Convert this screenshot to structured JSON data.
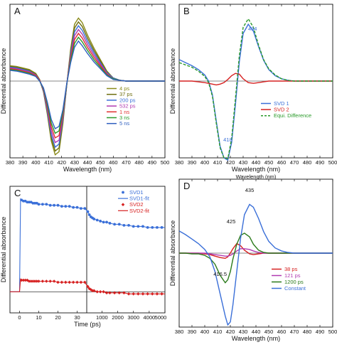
{
  "chart_data": [
    {
      "panel": "A",
      "type": "line",
      "xlabel": "Wavelength (nm)",
      "ylabel": "Differential absorbance",
      "xlim": [
        380,
        500
      ],
      "xticks": [
        380,
        390,
        400,
        410,
        420,
        430,
        440,
        450,
        460,
        470,
        480,
        490,
        500
      ],
      "ylim": [
        -1,
        1
      ],
      "x": [
        380,
        385,
        390,
        395,
        400,
        403,
        406,
        409,
        412,
        415,
        418,
        421,
        424,
        427,
        430,
        433,
        436,
        440,
        445,
        450,
        455,
        460,
        465,
        470,
        475,
        480,
        490,
        500
      ],
      "series": [
        {
          "name": "4 ps",
          "color": "#8a8a1a",
          "values": [
            0.2,
            0.19,
            0.17,
            0.15,
            0.1,
            0.02,
            -0.14,
            -0.44,
            -0.78,
            -0.96,
            -0.92,
            -0.55,
            -0.05,
            0.42,
            0.74,
            0.82,
            0.76,
            0.6,
            0.43,
            0.28,
            0.13,
            0.04,
            0.01,
            0.0,
            0.0,
            0.0,
            0.0,
            0.0
          ]
        },
        {
          "name": "37 ps",
          "color": "#6e6e0e",
          "values": [
            0.19,
            0.18,
            0.16,
            0.14,
            0.09,
            0.01,
            -0.14,
            -0.42,
            -0.74,
            -0.91,
            -0.87,
            -0.52,
            -0.05,
            0.39,
            0.69,
            0.77,
            0.71,
            0.56,
            0.4,
            0.26,
            0.12,
            0.04,
            0.01,
            0.0,
            0.0,
            0.0,
            0.0,
            0.0
          ]
        },
        {
          "name": "200 ps",
          "color": "#3a6fd8",
          "values": [
            0.18,
            0.17,
            0.15,
            0.13,
            0.08,
            0.01,
            -0.13,
            -0.4,
            -0.7,
            -0.86,
            -0.82,
            -0.49,
            -0.05,
            0.36,
            0.64,
            0.72,
            0.66,
            0.52,
            0.37,
            0.24,
            0.11,
            0.04,
            0.01,
            0.0,
            0.0,
            0.0,
            0.0,
            0.0
          ]
        },
        {
          "name": "532 ps",
          "color": "#b03ab0",
          "values": [
            0.17,
            0.16,
            0.14,
            0.12,
            0.08,
            0.01,
            -0.12,
            -0.37,
            -0.65,
            -0.8,
            -0.77,
            -0.46,
            -0.04,
            0.33,
            0.59,
            0.67,
            0.61,
            0.48,
            0.34,
            0.22,
            0.1,
            0.03,
            0.01,
            0.0,
            0.0,
            0.0,
            0.0,
            0.0
          ]
        },
        {
          "name": "1 ns",
          "color": "#e03030",
          "values": [
            0.16,
            0.15,
            0.13,
            0.11,
            0.07,
            0.01,
            -0.11,
            -0.34,
            -0.6,
            -0.74,
            -0.71,
            -0.43,
            -0.04,
            0.3,
            0.54,
            0.62,
            0.56,
            0.44,
            0.31,
            0.2,
            0.09,
            0.03,
            0.01,
            0.0,
            0.0,
            0.0,
            0.0,
            0.0
          ]
        },
        {
          "name": "3 ns",
          "color": "#2a9a2a",
          "values": [
            0.15,
            0.14,
            0.12,
            0.1,
            0.06,
            0.0,
            -0.1,
            -0.31,
            -0.55,
            -0.68,
            -0.65,
            -0.4,
            -0.04,
            0.27,
            0.49,
            0.57,
            0.51,
            0.4,
            0.28,
            0.18,
            0.08,
            0.03,
            0.01,
            0.0,
            0.0,
            0.0,
            0.0,
            0.0
          ]
        },
        {
          "name": "5 ns",
          "color": "#2f5fc0",
          "values": [
            0.14,
            0.13,
            0.11,
            0.09,
            0.06,
            0.0,
            -0.09,
            -0.28,
            -0.5,
            -0.62,
            -0.59,
            -0.37,
            -0.03,
            0.24,
            0.44,
            0.52,
            0.46,
            0.36,
            0.25,
            0.16,
            0.07,
            0.02,
            0.01,
            0.0,
            0.0,
            0.0,
            0.0,
            0.0
          ]
        }
      ]
    },
    {
      "panel": "B",
      "type": "line",
      "xlabel": "Wavelength (nm)",
      "ylabel": "Differential absorbance",
      "xlim": [
        380,
        500
      ],
      "xticks": [
        380,
        390,
        400,
        410,
        420,
        430,
        440,
        450,
        460,
        470,
        480,
        490,
        500
      ],
      "ylim": [
        -1,
        1
      ],
      "x": [
        380,
        385,
        390,
        395,
        400,
        403,
        406,
        409,
        412,
        415,
        418,
        421,
        424,
        427,
        430,
        434,
        438,
        442,
        446,
        450,
        455,
        460,
        465,
        470,
        480,
        490,
        500
      ],
      "series": [
        {
          "name": "SVD 1",
          "color": "#3a6fd8",
          "values": [
            0.28,
            0.24,
            0.2,
            0.15,
            0.08,
            0.0,
            -0.18,
            -0.52,
            -0.85,
            -1.0,
            -1.03,
            -0.8,
            -0.3,
            0.25,
            0.62,
            0.74,
            0.65,
            0.45,
            0.27,
            0.15,
            0.07,
            0.03,
            0.01,
            0.0,
            0.0,
            0.0,
            0.0
          ]
        },
        {
          "name": "SVD 2",
          "color": "#d62020",
          "values": [
            0.0,
            0.0,
            0.0,
            -0.01,
            -0.02,
            -0.03,
            -0.04,
            -0.05,
            -0.04,
            -0.02,
            0.02,
            0.07,
            0.1,
            0.09,
            0.03,
            -0.02,
            -0.03,
            -0.02,
            -0.01,
            0.0,
            0.0,
            0.0,
            0.0,
            0.0,
            0.0,
            0.0,
            0.0
          ]
        },
        {
          "name": "Equi. Difference",
          "color": "#2a9a2a",
          "dashed": true,
          "values": [
            0.24,
            0.21,
            0.18,
            0.13,
            0.06,
            -0.02,
            -0.2,
            -0.55,
            -0.87,
            -1.0,
            -1.01,
            -0.75,
            -0.22,
            0.33,
            0.7,
            0.81,
            0.7,
            0.47,
            0.28,
            0.16,
            0.08,
            0.03,
            0.01,
            0.0,
            0.0,
            0.0,
            0.0
          ]
        }
      ],
      "annotations": [
        {
          "text": "434",
          "x": 434
        },
        {
          "text": "418",
          "x": 418
        }
      ],
      "extra_label": "Wavelength (nm)"
    },
    {
      "panel": "C",
      "type": "scatter",
      "xlabel": "Time (ps)",
      "ylabel": "Differential absorbance",
      "segments": [
        {
          "xlim": [
            -5,
            35
          ],
          "xticks": [
            0,
            10,
            20,
            30
          ]
        },
        {
          "xlim": [
            35,
            5000
          ],
          "xticks": [
            1000,
            2000,
            3000,
            4000,
            5000
          ]
        }
      ],
      "ylim": [
        -0.2,
        1.0
      ],
      "series": [
        {
          "name": "SVD1",
          "color": "#3a6fd8",
          "marker": "circle",
          "x1": [
            1,
            2,
            3,
            4,
            5,
            6,
            7,
            8,
            9,
            10,
            12,
            14,
            16,
            18,
            20,
            22,
            24,
            26,
            28,
            30,
            32,
            34
          ],
          "v1": [
            0.87,
            0.86,
            0.86,
            0.85,
            0.85,
            0.85,
            0.84,
            0.84,
            0.84,
            0.83,
            0.83,
            0.83,
            0.82,
            0.82,
            0.82,
            0.81,
            0.81,
            0.81,
            0.8,
            0.8,
            0.79,
            0.79
          ],
          "x2": [
            100,
            200,
            300,
            400,
            500,
            700,
            900,
            1100,
            1300,
            1500,
            1800,
            2100,
            2400,
            2700,
            3000,
            3300,
            3600,
            3900,
            4200,
            4500,
            4800
          ],
          "v2": [
            0.76,
            0.73,
            0.71,
            0.7,
            0.69,
            0.68,
            0.67,
            0.66,
            0.66,
            0.65,
            0.64,
            0.64,
            0.63,
            0.63,
            0.62,
            0.62,
            0.62,
            0.61,
            0.61,
            0.61,
            0.61
          ]
        },
        {
          "name": "SVD1-fit",
          "color": "#3a6fd8",
          "line": true
        },
        {
          "name": "SVD2",
          "color": "#d62020",
          "marker": "diamond",
          "x1": [
            1,
            2,
            3,
            4,
            5,
            6,
            7,
            8,
            9,
            10,
            12,
            14,
            16,
            18,
            20,
            22,
            24,
            26,
            28,
            30,
            32,
            34
          ],
          "v1": [
            0.11,
            0.11,
            0.11,
            0.11,
            0.1,
            0.1,
            0.1,
            0.1,
            0.1,
            0.1,
            0.1,
            0.1,
            0.1,
            0.1,
            0.09,
            0.09,
            0.09,
            0.09,
            0.09,
            0.09,
            0.09,
            0.09
          ],
          "x2": [
            100,
            200,
            300,
            400,
            500,
            700,
            900,
            1100,
            1300,
            1500,
            1800,
            2100,
            2400,
            2700,
            3000,
            3300,
            3600,
            3900,
            4200,
            4500,
            4800
          ],
          "v2": [
            0.05,
            0.03,
            0.02,
            0.01,
            0.01,
            0.0,
            0.0,
            0.0,
            -0.01,
            -0.01,
            -0.01,
            -0.01,
            -0.01,
            -0.02,
            -0.02,
            -0.02,
            -0.02,
            -0.02,
            -0.02,
            -0.02,
            -0.02
          ]
        },
        {
          "name": "SVD2-fit",
          "color": "#d62020",
          "line": true
        }
      ]
    },
    {
      "panel": "D",
      "type": "line",
      "xlabel": "Wavelength (nm)",
      "ylabel": "Differential absorbance",
      "xlim": [
        380,
        500
      ],
      "xticks": [
        380,
        390,
        400,
        410,
        420,
        430,
        440,
        450,
        460,
        470,
        480,
        490,
        500
      ],
      "ylim": [
        -1,
        1
      ],
      "x": [
        380,
        385,
        390,
        395,
        400,
        404,
        408,
        412,
        416,
        418,
        420,
        422,
        425,
        428,
        431,
        435,
        438,
        442,
        446,
        450,
        455,
        460,
        465,
        470,
        480,
        490,
        500
      ],
      "series": [
        {
          "name": "38 ps",
          "color": "#d62020",
          "values": [
            0.0,
            0.0,
            0.0,
            0.0,
            -0.01,
            -0.02,
            -0.04,
            -0.06,
            -0.07,
            -0.05,
            0.0,
            0.06,
            0.13,
            0.1,
            0.04,
            -0.01,
            -0.02,
            -0.01,
            0.0,
            0.0,
            0.0,
            0.0,
            0.0,
            0.0,
            0.0,
            0.0,
            0.0
          ]
        },
        {
          "name": "121 ps",
          "color": "#b03ab0",
          "values": [
            0.0,
            0.0,
            0.0,
            0.0,
            0.0,
            -0.01,
            -0.02,
            -0.03,
            -0.04,
            -0.04,
            -0.03,
            -0.01,
            0.03,
            0.06,
            0.06,
            0.05,
            0.03,
            0.01,
            0.0,
            0.0,
            0.0,
            0.0,
            0.0,
            0.0,
            0.0,
            0.0,
            0.0
          ]
        },
        {
          "name": "1200 ps",
          "color": "#2a7a1a",
          "values": [
            0.0,
            0.0,
            -0.01,
            -0.01,
            -0.03,
            -0.07,
            -0.15,
            -0.3,
            -0.4,
            -0.36,
            -0.25,
            -0.08,
            0.12,
            0.24,
            0.27,
            0.22,
            0.12,
            0.04,
            0.01,
            0.0,
            0.0,
            0.0,
            0.0,
            0.0,
            0.0,
            0.0,
            0.0
          ]
        },
        {
          "name": "Constant",
          "color": "#3a6fd8",
          "values": [
            0.3,
            0.25,
            0.19,
            0.13,
            0.05,
            -0.05,
            -0.25,
            -0.55,
            -0.85,
            -0.97,
            -0.93,
            -0.7,
            -0.25,
            0.2,
            0.52,
            0.66,
            0.62,
            0.47,
            0.29,
            0.16,
            0.07,
            0.03,
            0.01,
            0.0,
            0.0,
            0.0,
            0.0
          ]
        }
      ],
      "annotations": [
        {
          "text": "435",
          "x": 435
        },
        {
          "text": "425",
          "x": 425
        },
        {
          "text": "416.5",
          "x": 416.5
        }
      ]
    }
  ]
}
